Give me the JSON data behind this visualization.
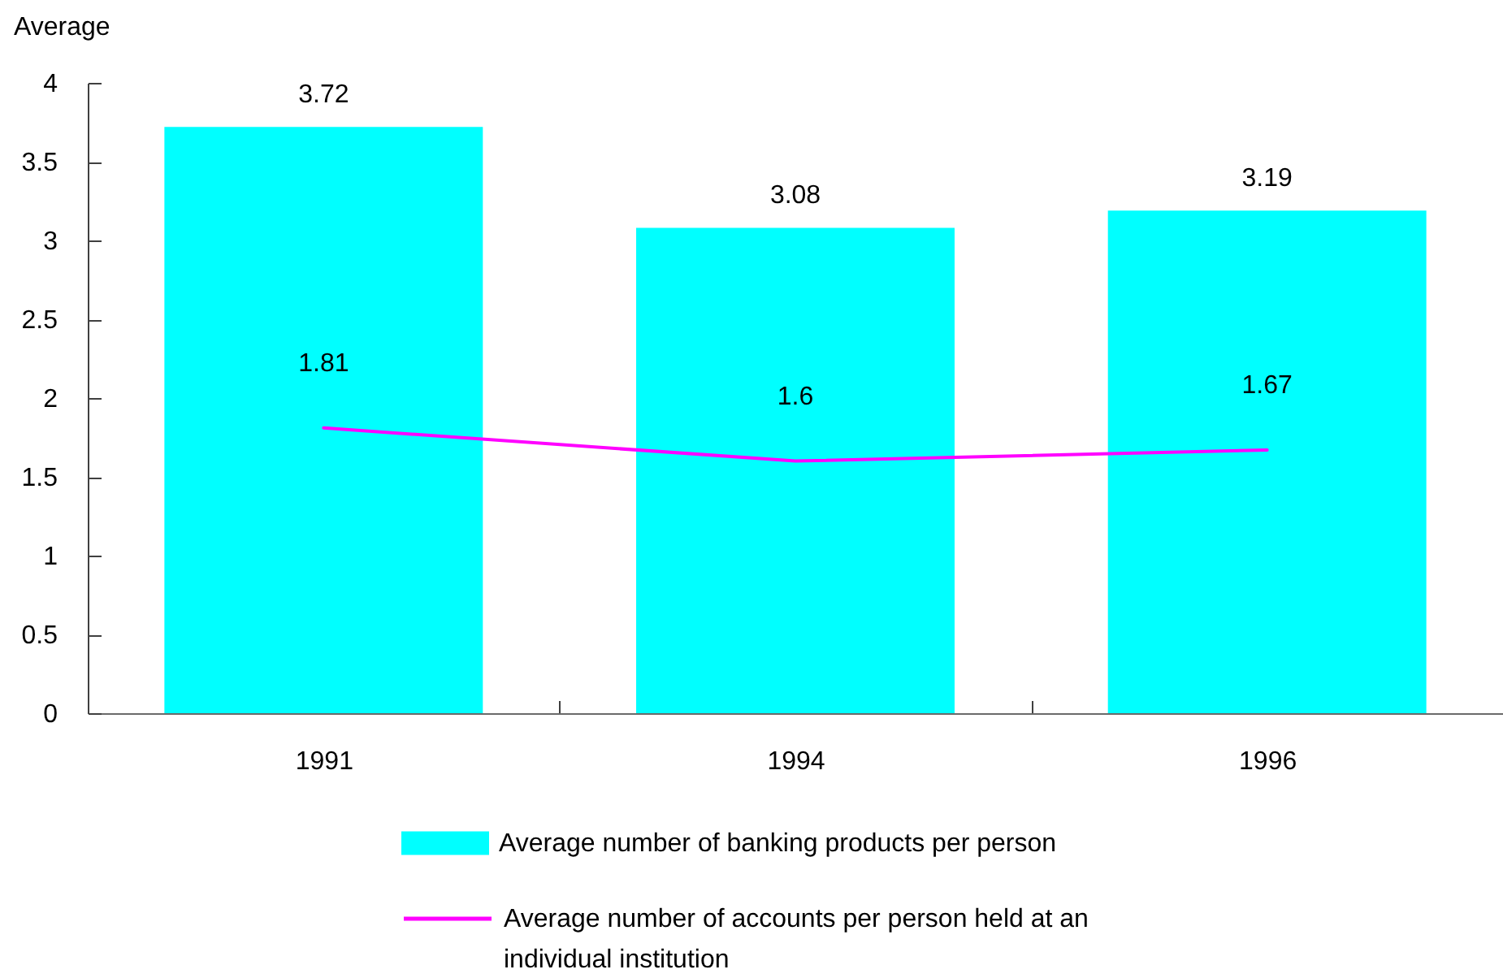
{
  "chart_data": {
    "type": "bar",
    "ylabel": "Average",
    "categories": [
      "1991",
      "1994",
      "1996"
    ],
    "series": [
      {
        "name": "Average number of banking products per person",
        "color": "#00ffff",
        "values": [
          3.72,
          3.08,
          3.19
        ]
      },
      {
        "name": "Average number of accounts per person held at an individual institution",
        "type": "line",
        "color": "#ff00ff",
        "values": [
          1.81,
          1.6,
          1.67
        ]
      }
    ],
    "ylim": [
      0,
      4
    ],
    "yticks": [
      0,
      0.5,
      1,
      1.5,
      2,
      2.5,
      3,
      3.5,
      4
    ],
    "data_labels": true,
    "legend": "bottom"
  }
}
